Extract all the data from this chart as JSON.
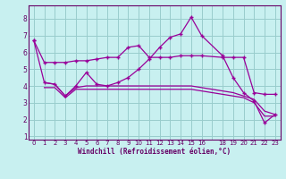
{
  "xlabel": "Windchill (Refroidissement éolien,°C)",
  "background_color": "#c8f0f0",
  "line_color": "#990099",
  "grid_color": "#99cccc",
  "ylim": [
    0.8,
    8.8
  ],
  "xlim": [
    -0.5,
    23.5
  ],
  "x_ticks": [
    0,
    1,
    2,
    3,
    4,
    5,
    6,
    7,
    8,
    9,
    10,
    11,
    12,
    13,
    14,
    15,
    16,
    18,
    19,
    20,
    21,
    22,
    23
  ],
  "y_ticks": [
    1,
    2,
    3,
    4,
    5,
    6,
    7,
    8
  ],
  "series1_x": [
    0,
    1,
    2,
    3,
    4,
    5,
    6,
    7,
    8,
    9,
    10,
    11,
    12,
    13,
    14,
    15,
    16,
    18,
    19,
    20,
    21,
    22,
    23
  ],
  "series1_y": [
    6.7,
    5.4,
    5.4,
    5.4,
    5.5,
    5.5,
    5.6,
    5.7,
    5.7,
    6.3,
    6.4,
    5.7,
    5.7,
    5.7,
    5.8,
    5.8,
    5.8,
    5.7,
    5.7,
    5.7,
    3.6,
    3.5,
    3.5
  ],
  "series2_x": [
    0,
    1,
    2,
    3,
    4,
    5,
    6,
    7,
    8,
    9,
    10,
    11,
    12,
    13,
    14,
    15,
    16,
    18,
    19,
    20,
    21,
    22,
    23
  ],
  "series2_y": [
    6.7,
    4.2,
    4.1,
    3.4,
    4.0,
    4.8,
    4.1,
    4.0,
    4.2,
    4.5,
    5.0,
    5.6,
    6.3,
    6.9,
    7.1,
    8.1,
    7.0,
    5.8,
    4.5,
    3.6,
    3.1,
    1.8,
    2.3
  ],
  "series3_x": [
    1,
    2,
    3,
    4,
    5,
    6,
    7,
    8,
    9,
    10,
    11,
    12,
    13,
    14,
    15,
    16,
    18,
    19,
    20,
    21,
    22,
    23
  ],
  "series3_y": [
    4.2,
    4.1,
    3.4,
    3.9,
    4.0,
    4.0,
    4.0,
    4.0,
    4.0,
    4.0,
    4.0,
    4.0,
    4.0,
    4.0,
    4.0,
    3.9,
    3.7,
    3.6,
    3.4,
    3.2,
    2.5,
    2.3
  ],
  "series4_x": [
    1,
    2,
    3,
    4,
    5,
    6,
    7,
    8,
    9,
    10,
    11,
    12,
    13,
    14,
    15,
    16,
    18,
    19,
    20,
    21,
    22,
    23
  ],
  "series4_y": [
    3.9,
    3.9,
    3.3,
    3.8,
    3.8,
    3.8,
    3.8,
    3.8,
    3.8,
    3.8,
    3.8,
    3.8,
    3.8,
    3.8,
    3.8,
    3.7,
    3.5,
    3.4,
    3.3,
    3.0,
    2.2,
    2.2
  ]
}
